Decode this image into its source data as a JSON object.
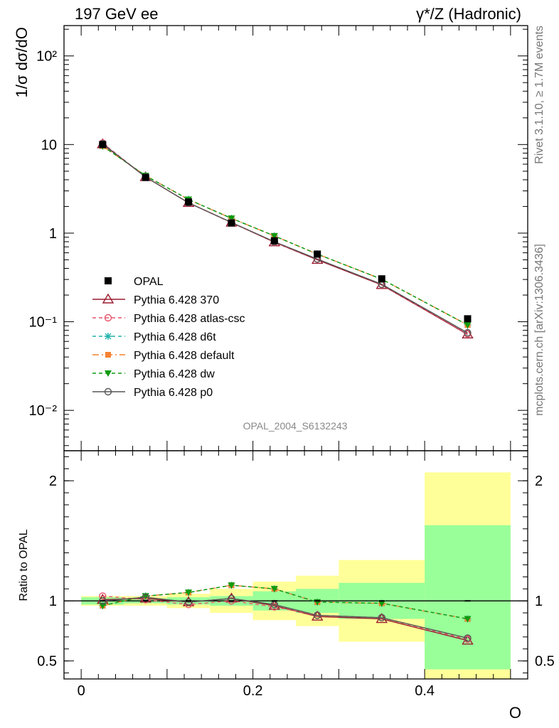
{
  "chart_data": [
    {
      "type": "line",
      "title_left": "197 GeV ee",
      "title_right": "γ*/Z (Hadronic)",
      "ylabel": "1/σ dσ/dO",
      "yscale": "log",
      "ylim": [
        0.0035,
        220
      ],
      "y_ticks": [
        {
          "value": 0.01,
          "label": "10⁻²"
        },
        {
          "value": 0.1,
          "label": "10⁻¹"
        },
        {
          "value": 1,
          "label": "1"
        },
        {
          "value": 10,
          "label": "10"
        },
        {
          "value": 100,
          "label": "10²"
        }
      ],
      "x": [
        0.025,
        0.075,
        0.125,
        0.175,
        0.225,
        0.275,
        0.35,
        0.45
      ],
      "data": {
        "name": "OPAL",
        "values": [
          10.0,
          4.25,
          2.25,
          1.3,
          0.82,
          0.58,
          0.305,
          0.108
        ]
      },
      "series": [
        {
          "name": "Pythia 6.428 370",
          "color": "#9b1b30",
          "dash": "",
          "marker": "triangle-open",
          "values": [
            10.1,
            4.3,
            2.2,
            1.32,
            0.79,
            0.5,
            0.26,
            0.072
          ]
        },
        {
          "name": "Pythia 6.428 atlas-csc",
          "color": "#e8556b",
          "dash": "5,4",
          "marker": "circle-open",
          "values": [
            10.4,
            4.3,
            2.2,
            1.31,
            0.79,
            0.51,
            0.263,
            0.073
          ]
        },
        {
          "name": "Pythia 6.428 d6t",
          "color": "#20b2aa",
          "dash": "5,4",
          "marker": "star",
          "values": [
            9.6,
            4.45,
            2.4,
            1.47,
            0.93,
            0.58,
            0.302,
            0.092
          ]
        },
        {
          "name": "Pythia 6.428 default",
          "color": "#f58231",
          "dash": "9,4,2,4",
          "marker": "square",
          "values": [
            9.6,
            4.45,
            2.4,
            1.47,
            0.93,
            0.58,
            0.302,
            0.092
          ]
        },
        {
          "name": "Pythia 6.428 dw",
          "color": "#0f9b0f",
          "dash": "5,4",
          "marker": "triangle-down",
          "values": [
            9.6,
            4.45,
            2.4,
            1.47,
            0.93,
            0.58,
            0.302,
            0.092
          ]
        },
        {
          "name": "Pythia 6.428 p0",
          "color": "#555555",
          "dash": "",
          "marker": "circle-open",
          "values": [
            10.2,
            4.3,
            2.2,
            1.32,
            0.8,
            0.51,
            0.265,
            0.075
          ]
        }
      ],
      "ref_label": "OPAL_2004_S6132243"
    },
    {
      "type": "line",
      "xlabel": "O",
      "ylabel": "Ratio to OPAL",
      "xlim": [
        -0.02,
        0.52
      ],
      "ylim": [
        0.35,
        2.25
      ],
      "x_ticks": [
        {
          "value": 0,
          "label": "0"
        },
        {
          "value": 0.2,
          "label": "0.2"
        },
        {
          "value": 0.4,
          "label": "0.4"
        }
      ],
      "y_ticks": [
        {
          "value": 0.5,
          "label": "0.5"
        },
        {
          "value": 1,
          "label": "1"
        },
        {
          "value": 2,
          "label": "2"
        }
      ],
      "bands": [
        {
          "xmin": 0.0,
          "xmax": 0.05,
          "green": [
            0.97,
            1.03
          ],
          "yellow": [
            0.96,
            1.04
          ]
        },
        {
          "xmin": 0.05,
          "xmax": 0.1,
          "green": [
            0.98,
            1.02
          ],
          "yellow": [
            0.96,
            1.04
          ]
        },
        {
          "xmin": 0.1,
          "xmax": 0.15,
          "green": [
            0.97,
            1.03
          ],
          "yellow": [
            0.94,
            1.06
          ]
        },
        {
          "xmin": 0.15,
          "xmax": 0.2,
          "green": [
            0.96,
            1.04
          ],
          "yellow": [
            0.9,
            1.1
          ]
        },
        {
          "xmin": 0.2,
          "xmax": 0.25,
          "green": [
            0.92,
            1.08
          ],
          "yellow": [
            0.84,
            1.16
          ]
        },
        {
          "xmin": 0.25,
          "xmax": 0.3,
          "green": [
            0.9,
            1.1
          ],
          "yellow": [
            0.79,
            1.21
          ]
        },
        {
          "xmin": 0.3,
          "xmax": 0.4,
          "green": [
            0.85,
            1.15
          ],
          "yellow": [
            0.66,
            1.34
          ]
        },
        {
          "xmin": 0.4,
          "xmax": 0.5,
          "green": [
            0.43,
            1.63
          ],
          "yellow": [
            0.35,
            2.07
          ]
        }
      ],
      "x": [
        0.025,
        0.075,
        0.125,
        0.175,
        0.225,
        0.275,
        0.35,
        0.45
      ],
      "series": [
        {
          "name": "Pythia 6.428 370",
          "color": "#9b1b30",
          "dash": "",
          "marker": "triangle-open",
          "values": [
            1.01,
            1.02,
            0.99,
            1.02,
            0.96,
            0.87,
            0.85,
            0.67
          ]
        },
        {
          "name": "Pythia 6.428 atlas-csc",
          "color": "#e8556b",
          "dash": "5,4",
          "marker": "circle-open",
          "values": [
            1.04,
            1.01,
            0.97,
            1.0,
            0.95,
            0.88,
            0.86,
            0.68
          ]
        },
        {
          "name": "Pythia 6.428 d6t",
          "color": "#20b2aa",
          "dash": "5,4",
          "marker": "star",
          "values": [
            0.96,
            1.04,
            1.07,
            1.13,
            1.1,
            0.99,
            0.98,
            0.85
          ]
        },
        {
          "name": "Pythia 6.428 default",
          "color": "#f58231",
          "dash": "9,4,2,4",
          "marker": "square",
          "values": [
            0.96,
            1.04,
            1.07,
            1.13,
            1.1,
            0.99,
            0.98,
            0.85
          ]
        },
        {
          "name": "Pythia 6.428 dw",
          "color": "#0f9b0f",
          "dash": "5,4",
          "marker": "triangle-down",
          "values": [
            0.96,
            1.04,
            1.07,
            1.13,
            1.1,
            0.99,
            0.98,
            0.85
          ]
        },
        {
          "name": "Pythia 6.428 p0",
          "color": "#555555",
          "dash": "",
          "marker": "circle-open",
          "values": [
            1.0,
            1.03,
            0.99,
            1.02,
            0.97,
            0.88,
            0.86,
            0.69
          ]
        }
      ]
    }
  ],
  "side_text": {
    "rivet": "Rivet 3.1.10, ≥ 1.7M events",
    "mcplots": "mcplots.cern.ch [arXiv:1306.3436]"
  },
  "colors": {
    "green_band": "#99ff99",
    "yellow_band": "#ffff99",
    "data_marker": "#000000"
  }
}
